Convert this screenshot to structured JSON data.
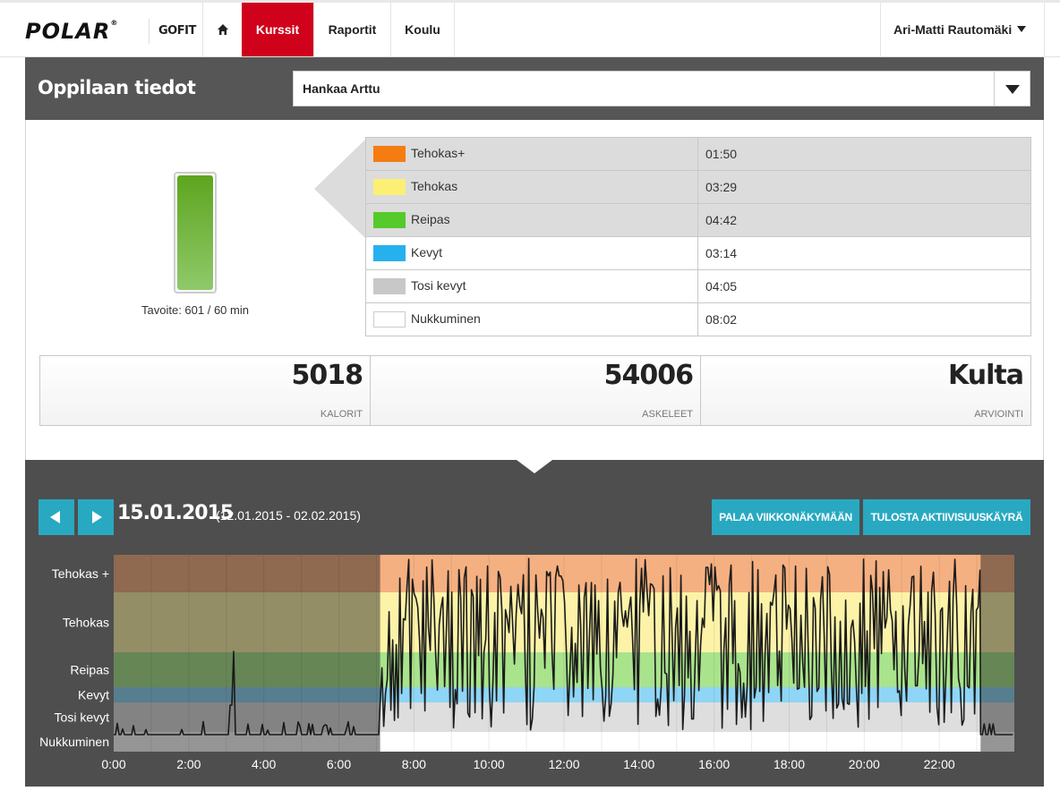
{
  "header": {
    "logo": "POLAR",
    "logo_mark": "®",
    "product": "GOFIT",
    "nav": [
      {
        "label": "Kurssit",
        "active": true
      },
      {
        "label": "Raportit",
        "active": false
      },
      {
        "label": "Koulu",
        "active": false
      }
    ],
    "home_icon": "home-icon",
    "user": "Ari-Matti Rautomäki"
  },
  "student": {
    "title": "Oppilaan tiedot",
    "selected": "Hankaa Arttu"
  },
  "goal": {
    "label": "Tavoite: 601 / 60 min",
    "fill_fraction": 1.0
  },
  "zones": [
    {
      "name": "Tehokas+",
      "time": "01:50",
      "color": "#f57c11",
      "highlight": true
    },
    {
      "name": "Tehokas",
      "time": "03:29",
      "color": "#fbef74",
      "highlight": true
    },
    {
      "name": "Reipas",
      "time": "04:42",
      "color": "#56c92b",
      "highlight": true
    },
    {
      "name": "Kevyt",
      "time": "03:14",
      "color": "#26b0ee",
      "highlight": false
    },
    {
      "name": "Tosi kevyt",
      "time": "04:05",
      "color": "#c8c8c8",
      "highlight": false
    },
    {
      "name": "Nukkuminen",
      "time": "08:02",
      "color": "#ffffff",
      "highlight": false
    }
  ],
  "stats": [
    {
      "value": "5018",
      "label": "KALORIT"
    },
    {
      "value": "54006",
      "label": "ASKELEET"
    },
    {
      "value": "Kulta",
      "label": "ARVIOINTI"
    }
  ],
  "activity": {
    "date": "15.01.2015",
    "range": "(12.01.2015 - 02.02.2015)",
    "back_button": "PALAA VIIKKONÄKYMÄÄN",
    "print_button": "TULOSTA AKTIIVISUUSKÄYRÄ"
  },
  "chart_data": {
    "type": "line",
    "zones": [
      "Tehokas +",
      "Tehokas",
      "Reipas",
      "Kevyt",
      "Tosi kevyt",
      "Nukkuminen"
    ],
    "zone_colors": [
      "#f5b081",
      "#fcf3a8",
      "#a9e38c",
      "#8fd5f5",
      "#dedede",
      "#ffffff"
    ],
    "x_ticks": [
      "0:00",
      "2:00",
      "4:00",
      "6:00",
      "8:00",
      "10:00",
      "12:00",
      "14:00",
      "16:00",
      "18:00",
      "20:00",
      "22:00"
    ],
    "x_range_hours": [
      0,
      24
    ],
    "active_window_hours": [
      7.1,
      23.1
    ],
    "sleep_spike_hour": 3.2
  }
}
